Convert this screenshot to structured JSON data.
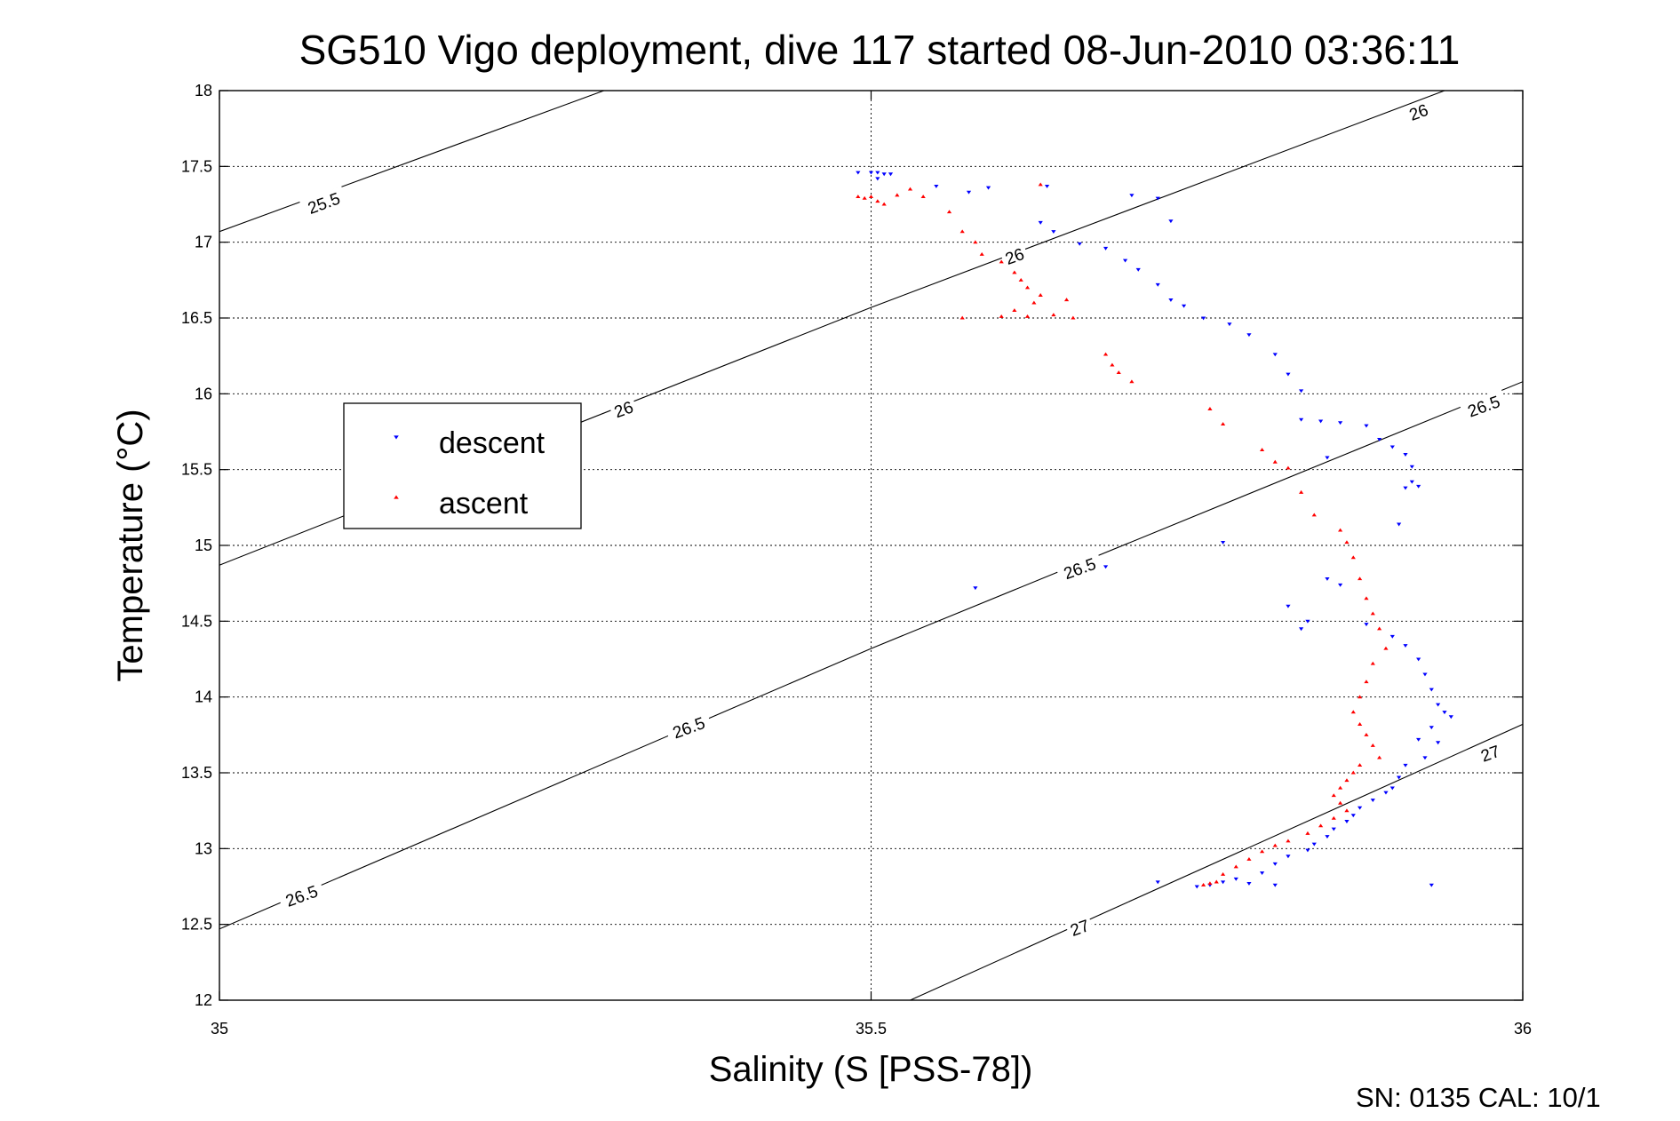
{
  "chart_data": {
    "type": "scatter",
    "title": "SG510 Vigo deployment, dive 117 started 08-Jun-2010 03:36:11",
    "xlabel": "Salinity (S [PSS-78])",
    "ylabel": "Temperature (°C)",
    "xlim": [
      35,
      36
    ],
    "ylim": [
      12,
      18
    ],
    "xticks": [
      "35",
      "35.5",
      "36"
    ],
    "yticks": [
      "12",
      "12.5",
      "13",
      "13.5",
      "14",
      "14.5",
      "15",
      "15.5",
      "16",
      "16.5",
      "17",
      "17.5",
      "18"
    ],
    "grid": true,
    "legend_position": "left",
    "footer": "SN: 0135  CAL: 10/1",
    "contours": [
      {
        "label": "25.5",
        "points": [
          [
            35.0,
            17.07
          ],
          [
            35.295,
            18.0
          ]
        ]
      },
      {
        "label": "26",
        "points": [
          [
            35.0,
            14.87
          ],
          [
            35.5,
            16.57
          ],
          [
            35.94,
            18.0
          ]
        ]
      },
      {
        "label": "26.5",
        "points": [
          [
            35.0,
            12.47
          ],
          [
            35.5,
            14.32
          ],
          [
            36.0,
            16.08
          ]
        ]
      },
      {
        "label": "27",
        "points": [
          [
            35.53,
            12.0
          ],
          [
            36.0,
            13.82
          ]
        ]
      }
    ],
    "contour_labels": [
      {
        "text": "25.5",
        "x": 35.08,
        "y": 17.26
      },
      {
        "text": "26",
        "x": 35.31,
        "y": 15.9
      },
      {
        "text": "26",
        "x": 35.61,
        "y": 16.91
      },
      {
        "text": "26",
        "x": 35.92,
        "y": 17.86
      },
      {
        "text": "26.5",
        "x": 35.063,
        "y": 12.69
      },
      {
        "text": "26.5",
        "x": 35.36,
        "y": 13.8
      },
      {
        "text": "26.5",
        "x": 35.66,
        "y": 14.85
      },
      {
        "text": "26.5",
        "x": 35.97,
        "y": 15.92
      },
      {
        "text": "27",
        "x": 35.66,
        "y": 12.48
      },
      {
        "text": "27",
        "x": 35.975,
        "y": 13.63
      }
    ],
    "series": [
      {
        "name": "descent",
        "marker": "triangle-down",
        "color": "#0000ff",
        "points": [
          [
            35.49,
            17.46
          ],
          [
            35.5,
            17.46
          ],
          [
            35.505,
            17.46
          ],
          [
            35.51,
            17.45
          ],
          [
            35.515,
            17.45
          ],
          [
            35.505,
            17.42
          ],
          [
            35.55,
            17.37
          ],
          [
            35.575,
            17.33
          ],
          [
            35.59,
            17.36
          ],
          [
            35.635,
            17.37
          ],
          [
            35.63,
            17.13
          ],
          [
            35.64,
            17.07
          ],
          [
            35.66,
            16.99
          ],
          [
            35.68,
            16.96
          ],
          [
            35.695,
            16.88
          ],
          [
            35.705,
            16.82
          ],
          [
            35.72,
            16.72
          ],
          [
            35.73,
            16.62
          ],
          [
            35.74,
            16.58
          ],
          [
            35.755,
            16.5
          ],
          [
            35.775,
            16.46
          ],
          [
            35.79,
            16.39
          ],
          [
            35.7,
            17.31
          ],
          [
            35.72,
            17.29
          ],
          [
            35.73,
            17.14
          ],
          [
            35.81,
            16.26
          ],
          [
            35.82,
            16.13
          ],
          [
            35.83,
            16.02
          ],
          [
            35.83,
            15.83
          ],
          [
            35.845,
            15.82
          ],
          [
            35.86,
            15.81
          ],
          [
            35.88,
            15.79
          ],
          [
            35.89,
            15.7
          ],
          [
            35.9,
            15.65
          ],
          [
            35.91,
            15.6
          ],
          [
            35.915,
            15.52
          ],
          [
            35.91,
            15.38
          ],
          [
            35.915,
            15.42
          ],
          [
            35.92,
            15.39
          ],
          [
            35.905,
            15.14
          ],
          [
            35.86,
            14.74
          ],
          [
            35.85,
            14.78
          ],
          [
            35.82,
            14.6
          ],
          [
            35.835,
            14.5
          ],
          [
            35.83,
            14.45
          ],
          [
            35.88,
            14.48
          ],
          [
            35.9,
            14.4
          ],
          [
            35.91,
            14.34
          ],
          [
            35.92,
            14.25
          ],
          [
            35.925,
            14.15
          ],
          [
            35.93,
            14.05
          ],
          [
            35.935,
            13.95
          ],
          [
            35.94,
            13.9
          ],
          [
            35.945,
            13.87
          ],
          [
            35.93,
            13.8
          ],
          [
            35.92,
            13.72
          ],
          [
            35.935,
            13.7
          ],
          [
            35.925,
            13.6
          ],
          [
            35.91,
            13.55
          ],
          [
            35.905,
            13.47
          ],
          [
            35.9,
            13.4
          ],
          [
            35.895,
            13.37
          ],
          [
            35.885,
            13.32
          ],
          [
            35.875,
            13.27
          ],
          [
            35.87,
            13.22
          ],
          [
            35.865,
            13.18
          ],
          [
            35.855,
            13.13
          ],
          [
            35.85,
            13.08
          ],
          [
            35.84,
            13.03
          ],
          [
            35.835,
            12.99
          ],
          [
            35.82,
            12.95
          ],
          [
            35.81,
            12.9
          ],
          [
            35.8,
            12.84
          ],
          [
            35.78,
            12.8
          ],
          [
            35.77,
            12.78
          ],
          [
            35.76,
            12.76
          ],
          [
            35.75,
            12.75
          ],
          [
            35.81,
            12.76
          ],
          [
            35.79,
            12.77
          ],
          [
            35.72,
            12.78
          ],
          [
            35.93,
            12.76
          ],
          [
            35.58,
            14.72
          ],
          [
            35.68,
            14.86
          ],
          [
            35.77,
            15.02
          ],
          [
            35.85,
            15.58
          ]
        ]
      },
      {
        "name": "ascent",
        "marker": "triangle-up",
        "color": "#ff0000",
        "points": [
          [
            35.49,
            17.3
          ],
          [
            35.495,
            17.29
          ],
          [
            35.5,
            17.3
          ],
          [
            35.505,
            17.27
          ],
          [
            35.51,
            17.25
          ],
          [
            35.52,
            17.31
          ],
          [
            35.53,
            17.35
          ],
          [
            35.54,
            17.3
          ],
          [
            35.56,
            17.2
          ],
          [
            35.57,
            17.07
          ],
          [
            35.58,
            17.0
          ],
          [
            35.585,
            16.92
          ],
          [
            35.6,
            16.87
          ],
          [
            35.61,
            16.8
          ],
          [
            35.615,
            16.75
          ],
          [
            35.62,
            16.7
          ],
          [
            35.63,
            16.65
          ],
          [
            35.625,
            16.6
          ],
          [
            35.61,
            16.55
          ],
          [
            35.6,
            16.51
          ],
          [
            35.62,
            16.51
          ],
          [
            35.64,
            16.52
          ],
          [
            35.655,
            16.5
          ],
          [
            35.57,
            16.5
          ],
          [
            35.63,
            17.38
          ],
          [
            35.65,
            16.62
          ],
          [
            35.68,
            16.26
          ],
          [
            35.685,
            16.19
          ],
          [
            35.69,
            16.14
          ],
          [
            35.7,
            16.08
          ],
          [
            35.76,
            15.9
          ],
          [
            35.77,
            15.8
          ],
          [
            35.8,
            15.63
          ],
          [
            35.81,
            15.55
          ],
          [
            35.82,
            15.51
          ],
          [
            35.83,
            15.35
          ],
          [
            35.84,
            15.2
          ],
          [
            35.86,
            15.1
          ],
          [
            35.865,
            15.02
          ],
          [
            35.87,
            14.92
          ],
          [
            35.875,
            14.78
          ],
          [
            35.88,
            14.65
          ],
          [
            35.885,
            14.55
          ],
          [
            35.89,
            14.45
          ],
          [
            35.895,
            14.32
          ],
          [
            35.885,
            14.22
          ],
          [
            35.88,
            14.1
          ],
          [
            35.875,
            14.0
          ],
          [
            35.87,
            13.9
          ],
          [
            35.875,
            13.82
          ],
          [
            35.88,
            13.75
          ],
          [
            35.885,
            13.68
          ],
          [
            35.89,
            13.6
          ],
          [
            35.875,
            13.55
          ],
          [
            35.87,
            13.5
          ],
          [
            35.865,
            13.45
          ],
          [
            35.86,
            13.4
          ],
          [
            35.855,
            13.35
          ],
          [
            35.86,
            13.3
          ],
          [
            35.865,
            13.25
          ],
          [
            35.855,
            13.2
          ],
          [
            35.845,
            13.15
          ],
          [
            35.835,
            13.1
          ],
          [
            35.82,
            13.05
          ],
          [
            35.81,
            13.02
          ],
          [
            35.8,
            12.98
          ],
          [
            35.79,
            12.93
          ],
          [
            35.78,
            12.88
          ],
          [
            35.77,
            12.83
          ],
          [
            35.765,
            12.78
          ],
          [
            35.76,
            12.77
          ],
          [
            35.755,
            12.76
          ]
        ]
      }
    ]
  }
}
